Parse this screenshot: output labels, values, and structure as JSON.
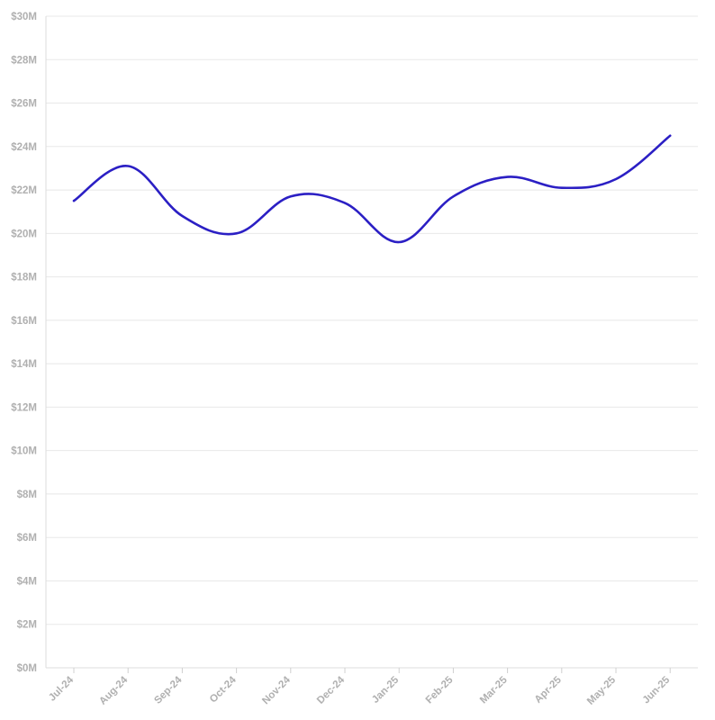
{
  "chart_data": {
    "type": "line",
    "title": "",
    "xlabel": "",
    "ylabel": "",
    "categories": [
      "Jul-24",
      "Aug-24",
      "Sep-24",
      "Oct-24",
      "Nov-24",
      "Dec-24",
      "Jan-25",
      "Feb-25",
      "Mar-25",
      "Apr-25",
      "May-25",
      "Jun-25"
    ],
    "series": [
      {
        "color": "#2b1fc4",
        "values": [
          21.5,
          23.1,
          20.8,
          20.0,
          21.7,
          21.4,
          19.6,
          21.7,
          22.6,
          22.1,
          22.5,
          24.5
        ]
      }
    ],
    "y_unit_prefix": "$",
    "y_unit_suffix": "M",
    "ylim": [
      0,
      30
    ],
    "y_ticks": [
      "$0M",
      "$2M",
      "$4M",
      "$6M",
      "$8M",
      "$10M",
      "$12M",
      "$14M",
      "$16M",
      "$18M",
      "$20M",
      "$22M",
      "$24M",
      "$26M",
      "$28M",
      "$30M"
    ],
    "grid": true,
    "legend": "none",
    "curve": "smooth"
  }
}
